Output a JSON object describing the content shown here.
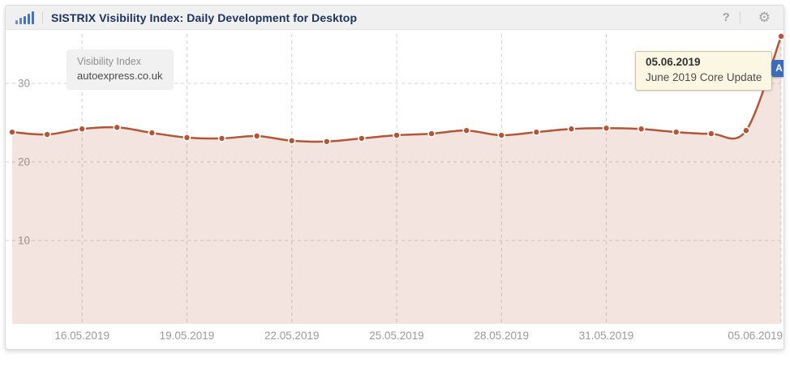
{
  "header": {
    "title": "SISTRIX Visibility Index: Daily Development for Desktop",
    "help_label": "?",
    "gear_glyph": "⚙"
  },
  "legend": {
    "metric": "Visibility Index",
    "domain": "autoexpress.co.uk"
  },
  "tooltip": {
    "date": "05.06.2019",
    "label": "June 2019 Core Update"
  },
  "event_marker": {
    "label": "A"
  },
  "colors": {
    "line": "#b45537",
    "fill": "rgba(180,85,55,0.16)",
    "navy": "#1c3361",
    "pin": "#3a6bbd",
    "tip-bg": "#fbf7e3",
    "tip-border": "#c9c3a5",
    "grid": "#d0d0d0",
    "axis-text": "#9a9a9a"
  },
  "chart_data": {
    "type": "area",
    "title": "SISTRIX Visibility Index: Daily Development for Desktop",
    "x": [
      "14.05.2019",
      "15.05.2019",
      "16.05.2019",
      "17.05.2019",
      "18.05.2019",
      "19.05.2019",
      "20.05.2019",
      "21.05.2019",
      "22.05.2019",
      "23.05.2019",
      "24.05.2019",
      "25.05.2019",
      "26.05.2019",
      "27.05.2019",
      "28.05.2019",
      "29.05.2019",
      "30.05.2019",
      "31.05.2019",
      "01.06.2019",
      "02.06.2019",
      "03.06.2019",
      "04.06.2019",
      "05.06.2019"
    ],
    "series": [
      {
        "name": "autoexpress.co.uk",
        "values": [
          23.8,
          23.5,
          24.2,
          24.4,
          23.7,
          23.1,
          23.0,
          23.3,
          22.7,
          22.6,
          23.0,
          23.4,
          23.6,
          24.0,
          23.4,
          23.8,
          24.2,
          24.3,
          24.2,
          23.8,
          23.6,
          24.0,
          36.0
        ]
      }
    ],
    "x_ticks": [
      {
        "index": 2,
        "label": "16.05.2019"
      },
      {
        "index": 5,
        "label": "19.05.2019"
      },
      {
        "index": 8,
        "label": "22.05.2019"
      },
      {
        "index": 11,
        "label": "25.05.2019"
      },
      {
        "index": 14,
        "label": "28.05.2019"
      },
      {
        "index": 17,
        "label": "31.05.2019"
      },
      {
        "index": 22,
        "label": "05.06.2019"
      }
    ],
    "y_ticks": [
      10,
      20,
      30
    ],
    "ylim": [
      0,
      36.8
    ],
    "grid": "dashed",
    "legend_position": "top-left",
    "annotations": [
      {
        "x": "05.06.2019",
        "marker": "A",
        "text": "June 2019 Core Update"
      }
    ]
  }
}
